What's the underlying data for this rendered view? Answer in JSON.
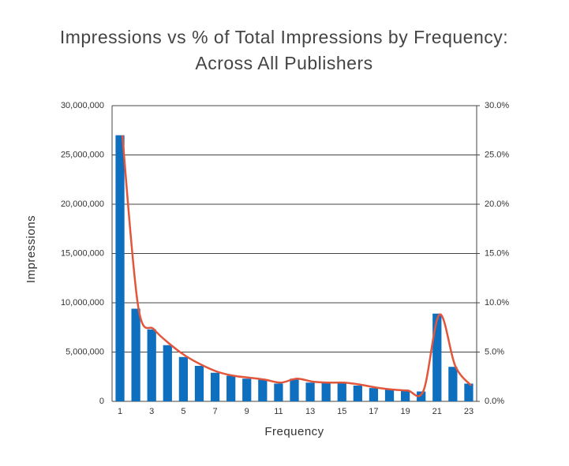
{
  "chart_data": {
    "type": "bar",
    "title": [
      "Impressions vs % of Total Impressions by Frequency:",
      "Across All Publishers"
    ],
    "x_label": "Frequency",
    "y_label": "Impressions",
    "categories": [
      "1",
      null,
      "3",
      null,
      "5",
      null,
      "7",
      null,
      "9",
      null,
      "11",
      null,
      "13",
      null,
      "15",
      null,
      "17",
      null,
      "19",
      null,
      "21",
      null,
      "23"
    ],
    "series": [
      {
        "type": "bar",
        "color": "#0f6fbf",
        "values": [
          27000000,
          9400000,
          7300000,
          5700000,
          4500000,
          3600000,
          2900000,
          2600000,
          2300000,
          2200000,
          1800000,
          2300000,
          1900000,
          1900000,
          1850000,
          1600000,
          1350000,
          1200000,
          1050000,
          1000000,
          8900000,
          3500000,
          1800000
        ]
      },
      {
        "type": "line",
        "axis": "y2",
        "color": "#e2563c",
        "values": [
          27.0,
          9.6,
          7.3,
          5.8,
          4.6,
          3.7,
          3.0,
          2.6,
          2.4,
          2.2,
          1.9,
          2.3,
          2.0,
          1.9,
          1.9,
          1.7,
          1.4,
          1.2,
          1.1,
          1.1,
          8.8,
          3.6,
          1.6
        ]
      }
    ],
    "ylim": [
      0,
      30000000
    ],
    "yticks": [
      0,
      {
        "value": 5000000,
        "label": "5,000,000"
      },
      {
        "value": 10000000,
        "label": "10,000,000"
      },
      {
        "value": 15000000,
        "label": "15,000,000"
      },
      {
        "value": 20000000,
        "label": "20,000,000"
      },
      {
        "value": 25000000,
        "label": "25,000,000"
      },
      {
        "value": 30000000,
        "label": "30,000,000"
      }
    ],
    "y2lim": [
      0,
      30
    ],
    "y2ticks": [
      {
        "value": 0,
        "label": "0.0%"
      },
      {
        "value": 5,
        "label": "5.0%"
      },
      {
        "value": 10,
        "label": "10.0%"
      },
      {
        "value": 15,
        "label": "15.0%"
      },
      {
        "value": 20,
        "label": "20.0%"
      },
      {
        "value": 25,
        "label": "25.0%"
      },
      {
        "value": 30,
        "label": "30.0%"
      }
    ],
    "grid": true
  }
}
